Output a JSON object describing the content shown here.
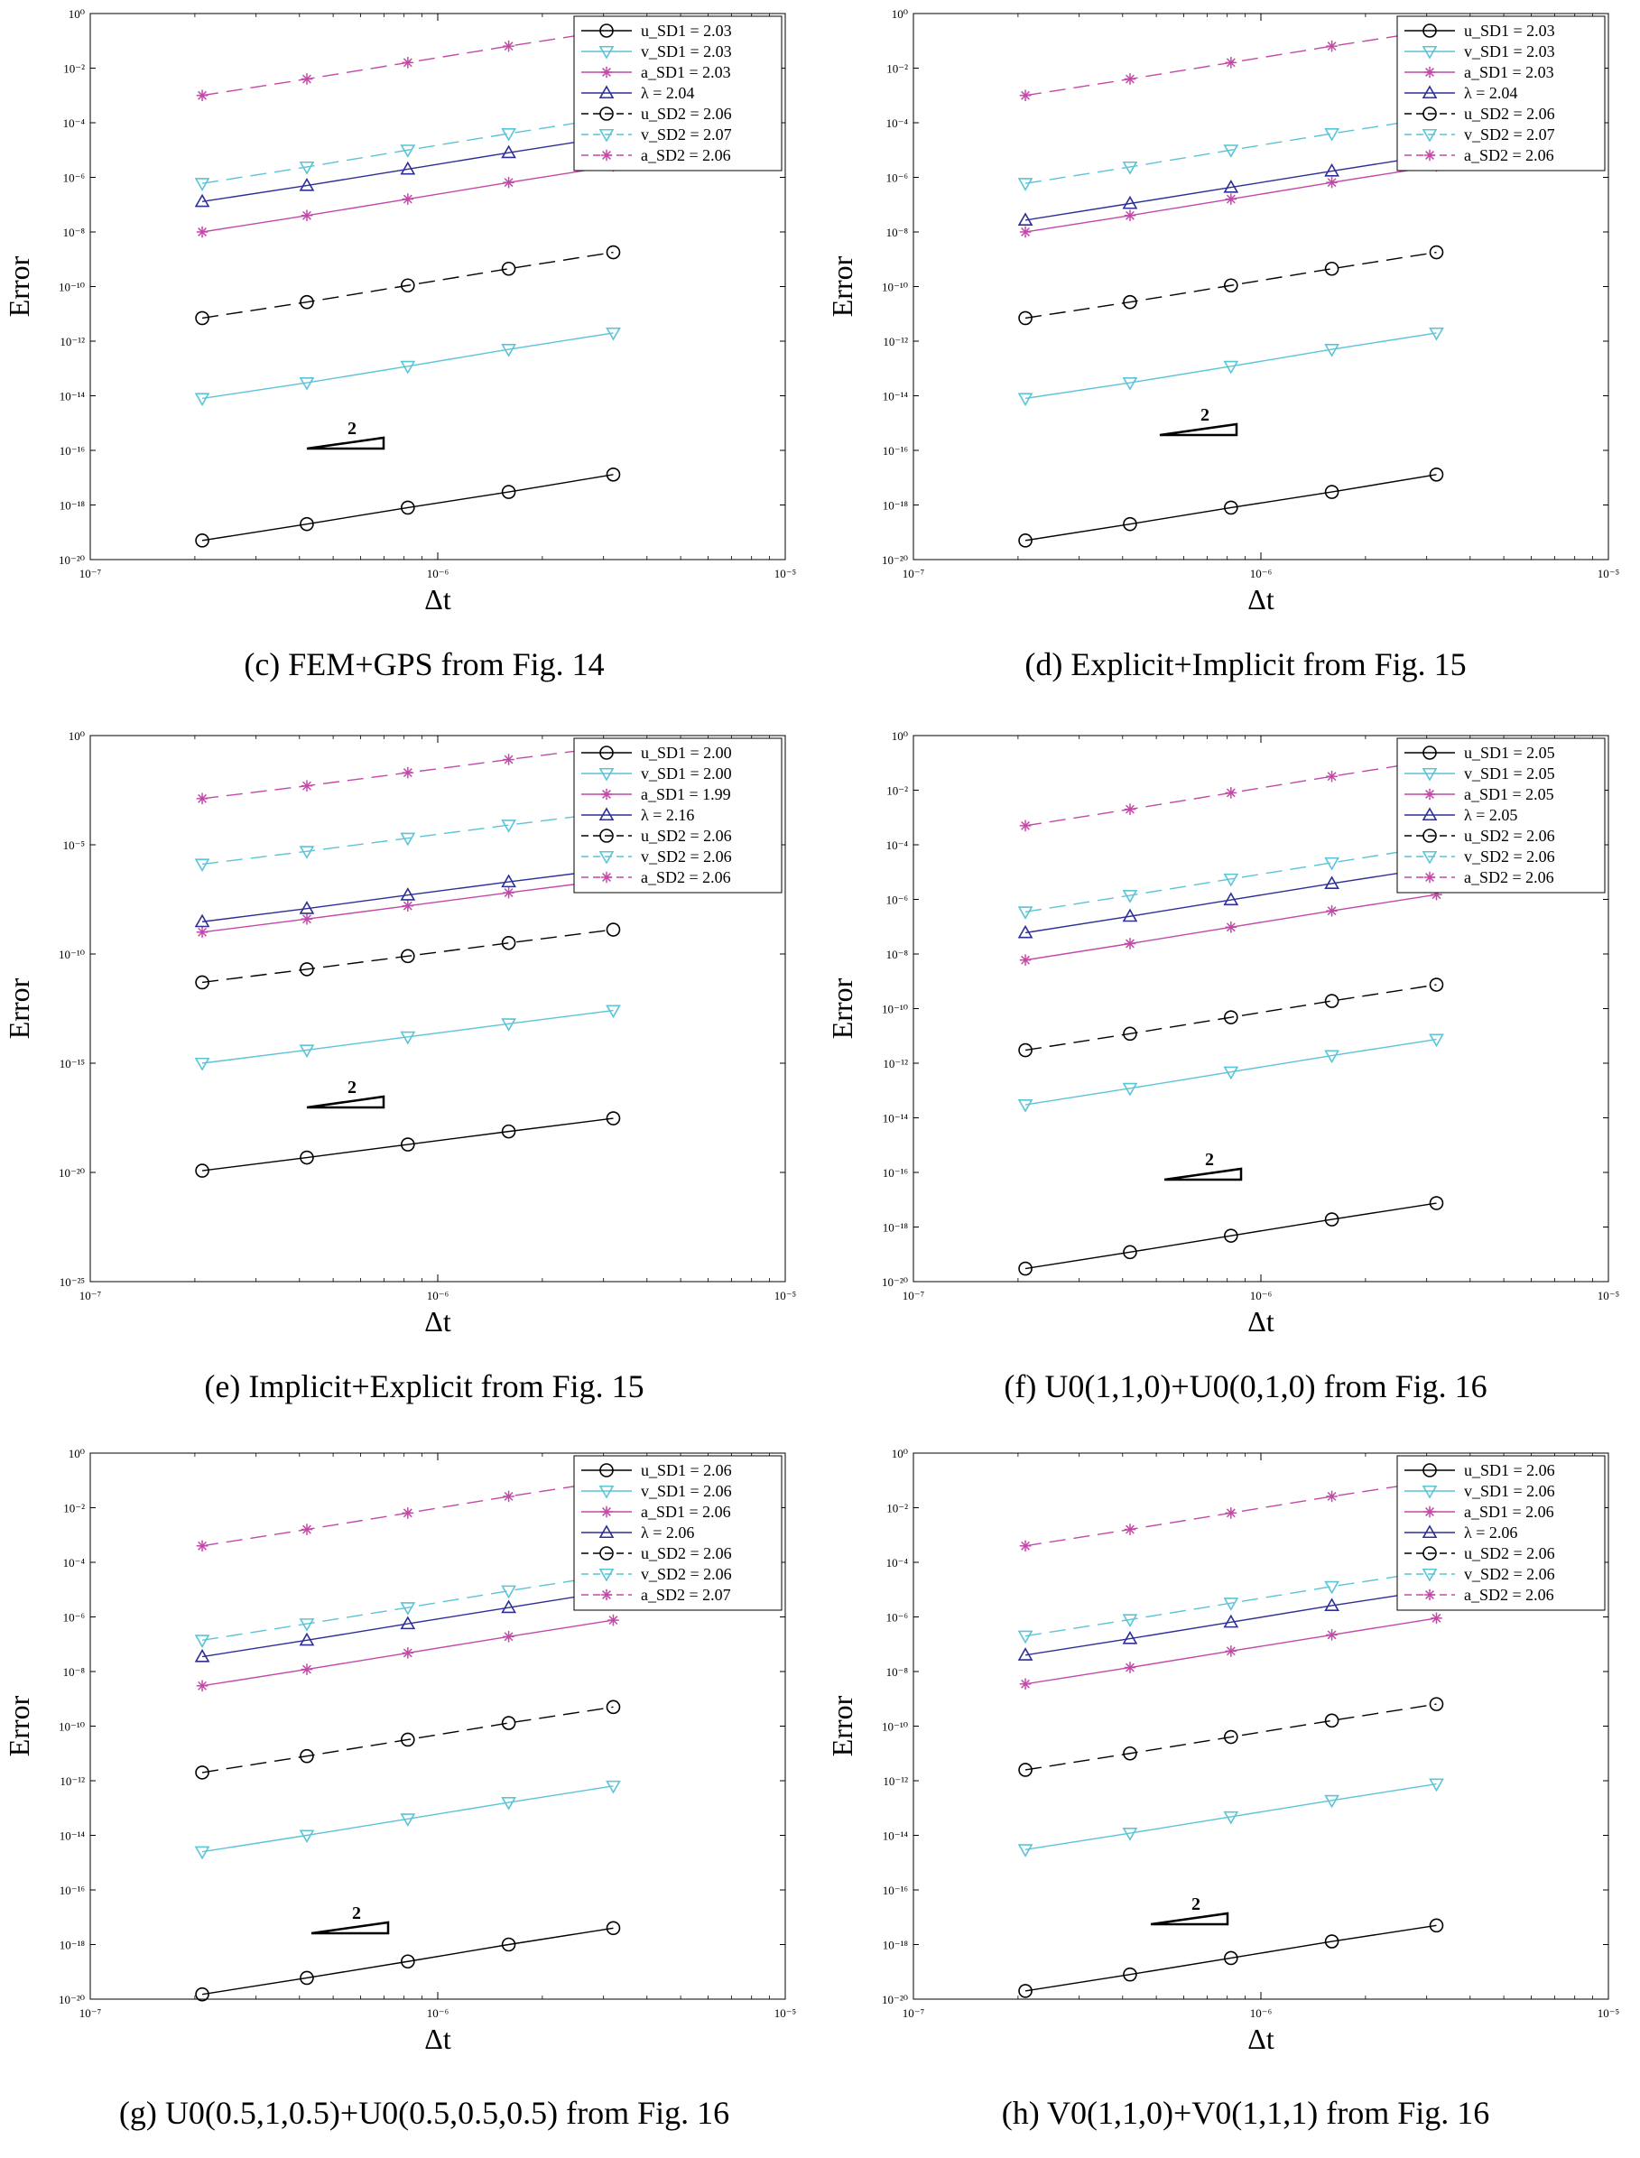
{
  "chart_data": [
    {
      "type": "line",
      "caption": "(c) FEM+GPS from Fig. 14",
      "xlabel": "Δt",
      "ylabel": "Error",
      "xscale": "log",
      "yscale": "log",
      "xlim": [
        1e-07,
        1e-05
      ],
      "ylim": [
        1e-20,
        1
      ],
      "xticks": [
        "10⁻⁷",
        "10⁻⁶",
        "10⁻⁵"
      ],
      "yticks": [
        "10⁻²⁰",
        "10⁻¹⁸",
        "10⁻¹⁶",
        "10⁻¹⁴",
        "10⁻¹²",
        "10⁻¹⁰",
        "10⁻⁸",
        "10⁻⁶",
        "10⁻⁴",
        "10⁻²",
        "10⁰"
      ],
      "x": [
        2.1e-07,
        4.2e-07,
        8.2e-07,
        1.6e-06,
        3.2e-06
      ],
      "legend": "top-right",
      "slope_label": "2",
      "series": [
        {
          "name": "u_SD1 = 2.03",
          "color": "#000000",
          "marker": "circle",
          "dash": "solid",
          "values": [
            5e-20,
            2e-19,
            8e-19,
            3e-18,
            1.3e-17
          ]
        },
        {
          "name": "v_SD1 = 2.03",
          "color": "#5bc4d6",
          "marker": "triangle-down",
          "dash": "solid",
          "values": [
            8e-15,
            3e-14,
            1.2e-13,
            5e-13,
            2e-12
          ]
        },
        {
          "name": "a_SD1 = 2.03",
          "color": "#c448a8",
          "marker": "star",
          "dash": "solid",
          "values": [
            1e-08,
            4e-08,
            1.6e-07,
            6.5e-07,
            2.6e-06
          ]
        },
        {
          "name": "λ    = 2.04",
          "color": "#2e2e96",
          "marker": "triangle-up",
          "dash": "solid",
          "values": [
            1.3e-07,
            5e-07,
            2e-06,
            8e-06,
            3.2e-05
          ]
        },
        {
          "name": "u_SD2 = 2.06",
          "color": "#000000",
          "marker": "circle",
          "dash": "dashed",
          "values": [
            7e-12,
            2.7e-11,
            1.1e-10,
            4.5e-10,
            1.8e-09
          ]
        },
        {
          "name": "v_SD2 = 2.07",
          "color": "#5bc4d6",
          "marker": "triangle-down",
          "dash": "dashed",
          "values": [
            6e-07,
            2.4e-06,
            1e-05,
            4e-05,
            0.00016
          ]
        },
        {
          "name": "a_SD2 = 2.06",
          "color": "#c448a8",
          "marker": "star",
          "dash": "dashed",
          "values": [
            0.001,
            0.004,
            0.016,
            0.064,
            0.25
          ]
        }
      ]
    },
    {
      "type": "line",
      "caption": "(d) Explicit+Implicit from Fig. 15",
      "xlabel": "Δt",
      "ylabel": "Error",
      "xscale": "log",
      "yscale": "log",
      "xlim": [
        1e-07,
        1e-05
      ],
      "ylim": [
        1e-20,
        1
      ],
      "xticks": [
        "10⁻⁷",
        "10⁻⁶",
        "10⁻⁵"
      ],
      "yticks": [
        "10⁻²⁰",
        "10⁻¹⁸",
        "10⁻¹⁶",
        "10⁻¹⁴",
        "10⁻¹²",
        "10⁻¹⁰",
        "10⁻⁸",
        "10⁻⁶",
        "10⁻⁴",
        "10⁻²",
        "10⁰"
      ],
      "x": [
        2.1e-07,
        4.2e-07,
        8.2e-07,
        1.6e-06,
        3.2e-06
      ],
      "legend": "top-right",
      "slope_label": "2",
      "series": [
        {
          "name": "u_SD1 = 2.03",
          "color": "#000000",
          "marker": "circle",
          "dash": "solid",
          "values": [
            5e-20,
            2e-19,
            8e-19,
            3e-18,
            1.3e-17
          ]
        },
        {
          "name": "v_SD1 = 2.03",
          "color": "#5bc4d6",
          "marker": "triangle-down",
          "dash": "solid",
          "values": [
            8e-15,
            3e-14,
            1.2e-13,
            5e-13,
            2e-12
          ]
        },
        {
          "name": "a_SD1 = 2.03",
          "color": "#c448a8",
          "marker": "star",
          "dash": "solid",
          "values": [
            1e-08,
            4e-08,
            1.6e-07,
            6.5e-07,
            2.6e-06
          ]
        },
        {
          "name": "λ    = 2.04",
          "color": "#2e2e96",
          "marker": "triangle-up",
          "dash": "solid",
          "values": [
            2.7e-08,
            1.1e-07,
            4.3e-07,
            1.7e-06,
            6.8e-06
          ]
        },
        {
          "name": "u_SD2 = 2.06",
          "color": "#000000",
          "marker": "circle",
          "dash": "dashed",
          "values": [
            7e-12,
            2.7e-11,
            1.1e-10,
            4.5e-10,
            1.8e-09
          ]
        },
        {
          "name": "v_SD2 = 2.07",
          "color": "#5bc4d6",
          "marker": "triangle-down",
          "dash": "dashed",
          "values": [
            6e-07,
            2.4e-06,
            1e-05,
            4e-05,
            0.00016
          ]
        },
        {
          "name": "a_SD2 = 2.06",
          "color": "#c448a8",
          "marker": "star",
          "dash": "dashed",
          "values": [
            0.001,
            0.004,
            0.016,
            0.064,
            0.25
          ]
        }
      ]
    },
    {
      "type": "line",
      "caption": "(e) Implicit+Explicit from Fig. 15",
      "xlabel": "Δt",
      "ylabel": "Error",
      "xscale": "log",
      "yscale": "log",
      "xlim": [
        1e-07,
        1e-05
      ],
      "ylim": [
        1e-25,
        1
      ],
      "xticks": [
        "10⁻⁷",
        "10⁻⁶",
        "10⁻⁵"
      ],
      "yticks": [
        "10⁻²⁵",
        "10⁻²⁰",
        "10⁻¹⁵",
        "10⁻¹⁰",
        "10⁻⁵",
        "10⁰"
      ],
      "x": [
        2.1e-07,
        4.2e-07,
        8.2e-07,
        1.6e-06,
        3.2e-06
      ],
      "legend": "top-right",
      "slope_label": "2",
      "series": [
        {
          "name": "u_SD1 = 2.00",
          "color": "#000000",
          "marker": "circle",
          "dash": "solid",
          "values": [
            1.2e-20,
            4.8e-20,
            1.9e-19,
            7.5e-19,
            3e-18
          ]
        },
        {
          "name": "v_SD1 = 2.00",
          "color": "#5bc4d6",
          "marker": "triangle-down",
          "dash": "solid",
          "values": [
            1e-15,
            4e-15,
            1.6e-14,
            6.4e-14,
            2.6e-13
          ]
        },
        {
          "name": "a_SD1 = 1.99",
          "color": "#c448a8",
          "marker": "star",
          "dash": "solid",
          "values": [
            1e-09,
            4e-09,
            1.6e-08,
            6.4e-08,
            2.6e-07
          ]
        },
        {
          "name": "λ    = 2.16",
          "color": "#2e2e96",
          "marker": "triangle-up",
          "dash": "solid",
          "values": [
            3e-09,
            1.2e-08,
            5e-08,
            2e-07,
            8e-07
          ]
        },
        {
          "name": "u_SD2 = 2.06",
          "color": "#000000",
          "marker": "circle",
          "dash": "dashed",
          "values": [
            5e-12,
            2e-11,
            8e-11,
            3.2e-10,
            1.3e-09
          ]
        },
        {
          "name": "v_SD2 = 2.06",
          "color": "#5bc4d6",
          "marker": "triangle-down",
          "dash": "dashed",
          "values": [
            1.3e-06,
            5e-06,
            2e-05,
            8e-05,
            0.00032
          ]
        },
        {
          "name": "a_SD2 = 2.06",
          "color": "#c448a8",
          "marker": "star",
          "dash": "dashed",
          "values": [
            0.0013,
            0.005,
            0.02,
            0.08,
            0.32
          ]
        }
      ]
    },
    {
      "type": "line",
      "caption": "(f) U0(1,1,0)+U0(0,1,0) from Fig. 16",
      "xlabel": "Δt",
      "ylabel": "Error",
      "xscale": "log",
      "yscale": "log",
      "xlim": [
        1e-07,
        1e-05
      ],
      "ylim": [
        1e-20,
        1
      ],
      "xticks": [
        "10⁻⁷",
        "10⁻⁶",
        "10⁻⁵"
      ],
      "yticks": [
        "10⁻²⁰",
        "10⁻¹⁸",
        "10⁻¹⁶",
        "10⁻¹⁴",
        "10⁻¹²",
        "10⁻¹⁰",
        "10⁻⁸",
        "10⁻⁶",
        "10⁻⁴",
        "10⁻²",
        "10⁰"
      ],
      "x": [
        2.1e-07,
        4.2e-07,
        8.2e-07,
        1.6e-06,
        3.2e-06
      ],
      "legend": "top-right",
      "slope_label": "2",
      "series": [
        {
          "name": "u_SD1 = 2.05",
          "color": "#000000",
          "marker": "circle",
          "dash": "solid",
          "values": [
            3e-20,
            1.2e-19,
            4.8e-19,
            1.9e-18,
            7.5e-18
          ]
        },
        {
          "name": "v_SD1 = 2.05",
          "color": "#5bc4d6",
          "marker": "triangle-down",
          "dash": "solid",
          "values": [
            3e-14,
            1.2e-13,
            4.8e-13,
            1.9e-12,
            7.5e-12
          ]
        },
        {
          "name": "a_SD1 = 2.05",
          "color": "#c448a8",
          "marker": "star",
          "dash": "solid",
          "values": [
            6e-09,
            2.4e-08,
            9.6e-08,
            3.8e-07,
            1.5e-06
          ]
        },
        {
          "name": "λ    = 2.05",
          "color": "#2e2e96",
          "marker": "triangle-up",
          "dash": "solid",
          "values": [
            6e-08,
            2.4e-07,
            9.6e-07,
            3.8e-06,
            1.5e-05
          ]
        },
        {
          "name": "u_SD2 = 2.06",
          "color": "#000000",
          "marker": "circle",
          "dash": "dashed",
          "values": [
            3e-12,
            1.2e-11,
            4.8e-11,
            1.9e-10,
            7.5e-10
          ]
        },
        {
          "name": "v_SD2 = 2.06",
          "color": "#5bc4d6",
          "marker": "triangle-down",
          "dash": "dashed",
          "values": [
            3.5e-07,
            1.4e-06,
            5.6e-06,
            2.2e-05,
            9e-05
          ]
        },
        {
          "name": "a_SD2 = 2.06",
          "color": "#c448a8",
          "marker": "star",
          "dash": "dashed",
          "values": [
            0.0005,
            0.002,
            0.008,
            0.032,
            0.13
          ]
        }
      ]
    },
    {
      "type": "line",
      "caption": "(g) U0(0.5,1,0.5)+U0(0.5,0.5,0.5) from Fig. 16",
      "xlabel": "Δt",
      "ylabel": "Error",
      "xscale": "log",
      "yscale": "log",
      "xlim": [
        1e-07,
        1e-05
      ],
      "ylim": [
        1e-20,
        1
      ],
      "xticks": [
        "10⁻⁷",
        "10⁻⁶",
        "10⁻⁵"
      ],
      "yticks": [
        "10⁻²⁰",
        "10⁻¹⁸",
        "10⁻¹⁶",
        "10⁻¹⁴",
        "10⁻¹²",
        "10⁻¹⁰",
        "10⁻⁸",
        "10⁻⁶",
        "10⁻⁴",
        "10⁻²",
        "10⁰"
      ],
      "x": [
        2.1e-07,
        4.2e-07,
        8.2e-07,
        1.6e-06,
        3.2e-06
      ],
      "legend": "top-right",
      "slope_label": "2",
      "series": [
        {
          "name": "u_SD1 = 2.06",
          "color": "#000000",
          "marker": "circle",
          "dash": "solid",
          "values": [
            1.5e-20,
            6e-20,
            2.4e-19,
            1e-18,
            4e-18
          ]
        },
        {
          "name": "v_SD1 = 2.06",
          "color": "#5bc4d6",
          "marker": "triangle-down",
          "dash": "solid",
          "values": [
            2.5e-15,
            1e-14,
            4e-14,
            1.6e-13,
            6.4e-13
          ]
        },
        {
          "name": "a_SD1 = 2.06",
          "color": "#c448a8",
          "marker": "star",
          "dash": "solid",
          "values": [
            3e-09,
            1.2e-08,
            4.8e-08,
            1.9e-07,
            7.6e-07
          ]
        },
        {
          "name": "λ    = 2.06",
          "color": "#2e2e96",
          "marker": "triangle-up",
          "dash": "solid",
          "values": [
            3.5e-08,
            1.4e-07,
            5.6e-07,
            2.2e-06,
            9e-06
          ]
        },
        {
          "name": "u_SD2 = 2.06",
          "color": "#000000",
          "marker": "circle",
          "dash": "dashed",
          "values": [
            2e-12,
            8e-12,
            3.2e-11,
            1.3e-10,
            5e-10
          ]
        },
        {
          "name": "v_SD2 = 2.06",
          "color": "#5bc4d6",
          "marker": "triangle-down",
          "dash": "dashed",
          "values": [
            1.4e-07,
            5.6e-07,
            2.2e-06,
            9e-06,
            3.6e-05
          ]
        },
        {
          "name": "a_SD2 = 2.07",
          "color": "#c448a8",
          "marker": "star",
          "dash": "dashed",
          "values": [
            0.0004,
            0.0016,
            0.0064,
            0.026,
            0.1
          ]
        }
      ]
    },
    {
      "type": "line",
      "caption": "(h) V0(1,1,0)+V0(1,1,1) from Fig. 16",
      "xlabel": "Δt",
      "ylabel": "Error",
      "xscale": "log",
      "yscale": "log",
      "xlim": [
        1e-07,
        1e-05
      ],
      "ylim": [
        1e-20,
        1
      ],
      "xticks": [
        "10⁻⁷",
        "10⁻⁶",
        "10⁻⁵"
      ],
      "yticks": [
        "10⁻²⁰",
        "10⁻¹⁸",
        "10⁻¹⁶",
        "10⁻¹⁴",
        "10⁻¹²",
        "10⁻¹⁰",
        "10⁻⁸",
        "10⁻⁶",
        "10⁻⁴",
        "10⁻²",
        "10⁰"
      ],
      "x": [
        2.1e-07,
        4.2e-07,
        8.2e-07,
        1.6e-06,
        3.2e-06
      ],
      "legend": "top-right",
      "slope_label": "2",
      "series": [
        {
          "name": "u_SD1 = 2.06",
          "color": "#000000",
          "marker": "circle",
          "dash": "solid",
          "values": [
            2e-20,
            8e-20,
            3.2e-19,
            1.3e-18,
            5e-18
          ]
        },
        {
          "name": "v_SD1 = 2.06",
          "color": "#5bc4d6",
          "marker": "triangle-down",
          "dash": "solid",
          "values": [
            3e-15,
            1.2e-14,
            4.8e-14,
            1.9e-13,
            7.6e-13
          ]
        },
        {
          "name": "a_SD1 = 2.06",
          "color": "#c448a8",
          "marker": "star",
          "dash": "solid",
          "values": [
            3.5e-09,
            1.4e-08,
            5.6e-08,
            2.2e-07,
            9e-07
          ]
        },
        {
          "name": "λ    = 2.06",
          "color": "#2e2e96",
          "marker": "triangle-up",
          "dash": "solid",
          "values": [
            4e-08,
            1.6e-07,
            6.4e-07,
            2.6e-06,
            1e-05
          ]
        },
        {
          "name": "u_SD2 = 2.06",
          "color": "#000000",
          "marker": "circle",
          "dash": "dashed",
          "values": [
            2.5e-12,
            1e-11,
            4e-11,
            1.6e-10,
            6.4e-10
          ]
        },
        {
          "name": "v_SD2 = 2.06",
          "color": "#5bc4d6",
          "marker": "triangle-down",
          "dash": "dashed",
          "values": [
            2e-07,
            8e-07,
            3.2e-06,
            1.3e-05,
            5e-05
          ]
        },
        {
          "name": "a_SD2 = 2.06",
          "color": "#c448a8",
          "marker": "star",
          "dash": "dashed",
          "values": [
            0.0004,
            0.0016,
            0.0064,
            0.026,
            0.1
          ]
        }
      ]
    }
  ]
}
